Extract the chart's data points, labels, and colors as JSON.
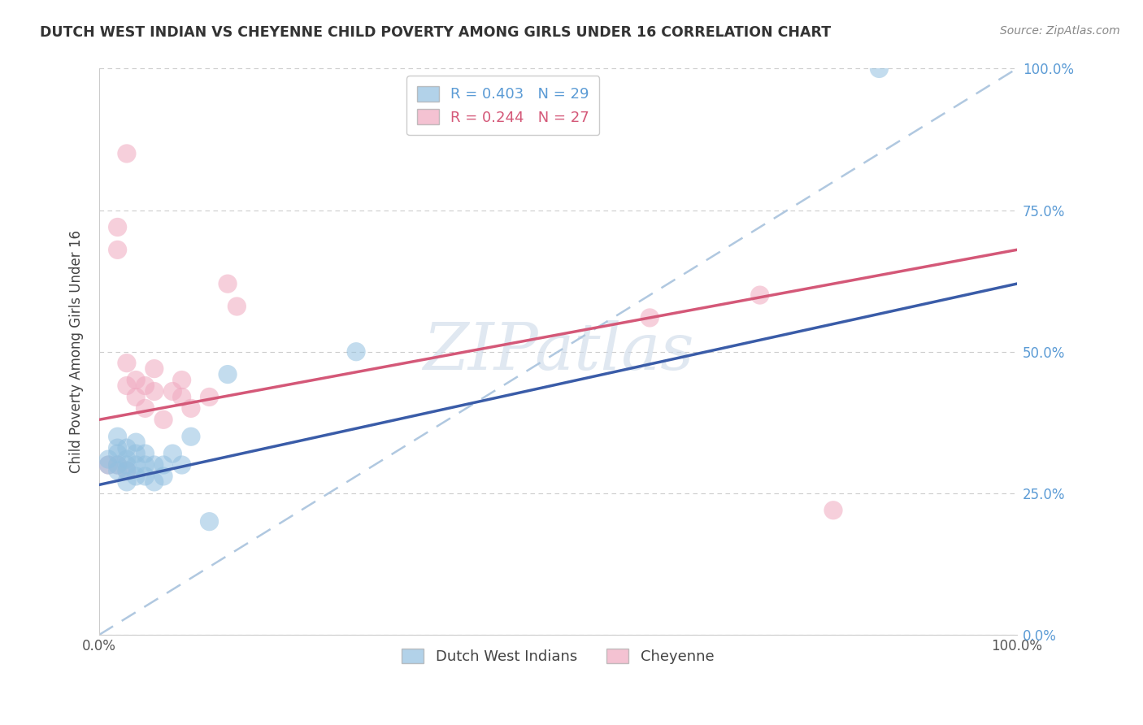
{
  "title": "DUTCH WEST INDIAN VS CHEYENNE CHILD POVERTY AMONG GIRLS UNDER 16 CORRELATION CHART",
  "source": "Source: ZipAtlas.com",
  "ylabel": "Child Poverty Among Girls Under 16",
  "legend_label1": "Dutch West Indians",
  "legend_label2": "Cheyenne",
  "blue_color": "#92c0e0",
  "pink_color": "#f0a8bf",
  "blue_line_color": "#3a5ca8",
  "pink_line_color": "#d45878",
  "diagonal_line_color": "#b0c8e0",
  "watermark_text": "ZIPatlas",
  "xlim": [
    0.0,
    1.0
  ],
  "ylim": [
    0.0,
    1.0
  ],
  "ytick_labels": [
    "0.0%",
    "25.0%",
    "50.0%",
    "75.0%",
    "100.0%"
  ],
  "ytick_values": [
    0.0,
    0.25,
    0.5,
    0.75,
    1.0
  ],
  "blue_x": [
    0.01,
    0.01,
    0.02,
    0.02,
    0.02,
    0.02,
    0.02,
    0.03,
    0.03,
    0.03,
    0.03,
    0.03,
    0.04,
    0.04,
    0.04,
    0.04,
    0.05,
    0.05,
    0.05,
    0.06,
    0.06,
    0.07,
    0.07,
    0.08,
    0.09,
    0.1,
    0.12,
    0.14,
    0.28,
    0.85
  ],
  "blue_y": [
    0.3,
    0.31,
    0.29,
    0.3,
    0.32,
    0.33,
    0.35,
    0.27,
    0.29,
    0.3,
    0.31,
    0.33,
    0.28,
    0.3,
    0.32,
    0.34,
    0.28,
    0.3,
    0.32,
    0.27,
    0.3,
    0.28,
    0.3,
    0.32,
    0.3,
    0.35,
    0.2,
    0.46,
    0.5,
    1.0
  ],
  "pink_x": [
    0.01,
    0.02,
    0.02,
    0.03,
    0.03,
    0.03,
    0.04,
    0.04,
    0.05,
    0.05,
    0.06,
    0.06,
    0.07,
    0.08,
    0.09,
    0.09,
    0.1,
    0.12,
    0.14,
    0.15,
    0.6,
    0.72,
    0.8,
    0.02,
    0.03
  ],
  "pink_y": [
    0.3,
    0.68,
    0.72,
    0.44,
    0.48,
    0.85,
    0.42,
    0.45,
    0.4,
    0.44,
    0.43,
    0.47,
    0.38,
    0.43,
    0.42,
    0.45,
    0.4,
    0.42,
    0.62,
    0.58,
    0.56,
    0.6,
    0.22,
    0.3,
    0.29
  ],
  "blue_trend_x": [
    0.0,
    1.0
  ],
  "blue_trend_y": [
    0.265,
    0.62
  ],
  "pink_trend_x": [
    0.0,
    1.0
  ],
  "pink_trend_y": [
    0.38,
    0.68
  ]
}
